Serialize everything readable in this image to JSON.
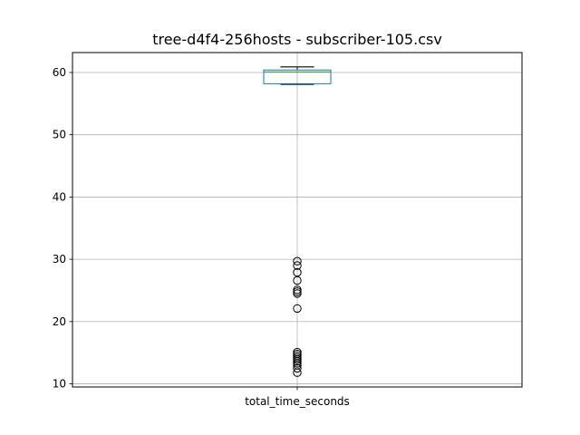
{
  "chart_data": {
    "type": "box",
    "title": "tree-d4f4-256hosts - subscriber-105.csv",
    "xlabel": "",
    "ylabel": "",
    "categories": [
      "total_time_seconds"
    ],
    "ylim": [
      9.5,
      63.2
    ],
    "yticks": [
      10,
      20,
      30,
      40,
      50,
      60
    ],
    "grid": true,
    "box": {
      "whisker_low": 58.1,
      "q1": 58.2,
      "median": 60.1,
      "q3": 60.4,
      "whisker_high": 60.9
    },
    "outliers": [
      29.7,
      29.0,
      27.9,
      26.6,
      25.1,
      24.8,
      24.5,
      22.1,
      15.1,
      14.8,
      14.5,
      14.2,
      13.9,
      13.6,
      13.3,
      13.0,
      12.5,
      11.8
    ],
    "colors": {
      "box": "#1f77b4",
      "median": "#2ca02c",
      "whisker": "#000000",
      "grid": "#b0b0b0"
    }
  }
}
